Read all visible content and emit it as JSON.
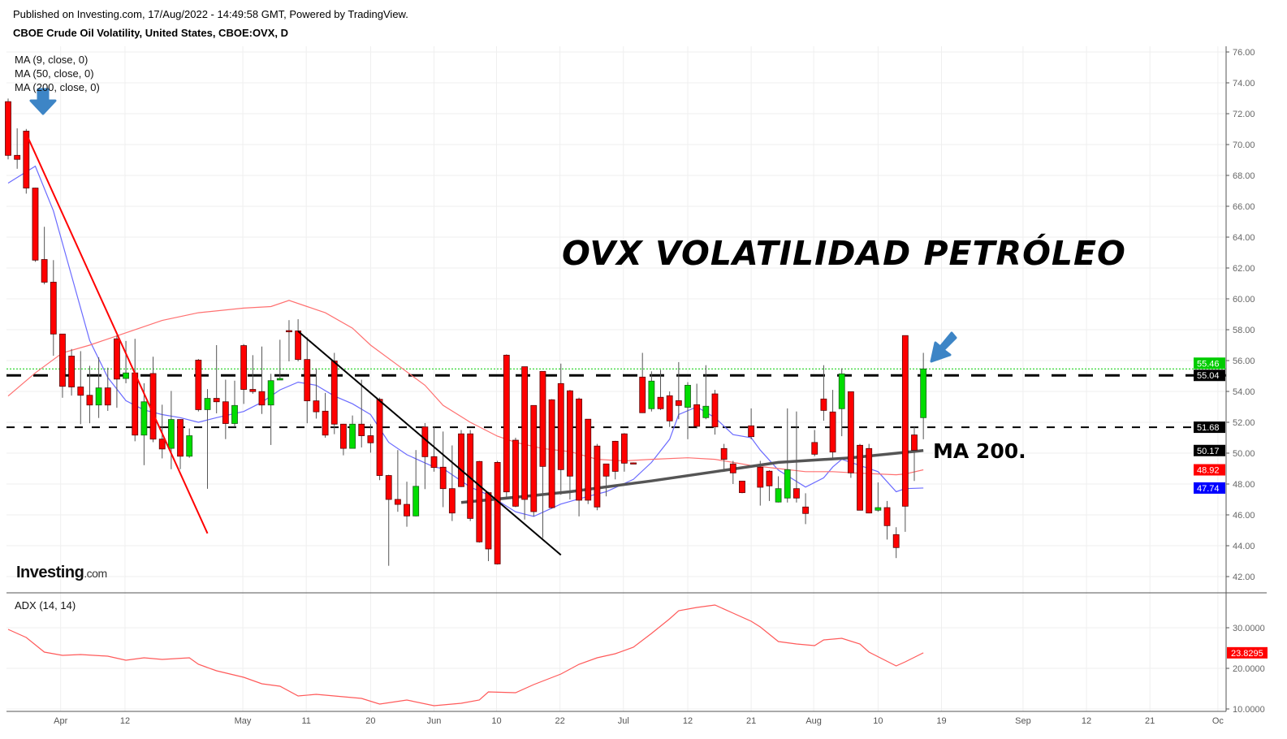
{
  "header": {
    "published": "Published on Investing.com, 17/Aug/2022 - 14:49:58 GMT, Powered by TradingView.",
    "title": "CBOE Crude Oil Volatility, United States, CBOE:OVX, D"
  },
  "legend": {
    "ma9": "MA (9, close, 0)",
    "ma50": "MA (50, close, 0)",
    "ma200": "MA (200, close, 0)",
    "adx": "ADX (14, 14)"
  },
  "annotations": {
    "headline": "OVX VOLATILIDAD PETRÓLEO",
    "ma200_note": "MA 200."
  },
  "logo": {
    "main": "Investing",
    "suffix": ".com"
  },
  "colors": {
    "up": "#00dd00",
    "down": "#ff0000",
    "ma9": "#6b6bff",
    "ma50": "#ff7070",
    "ma200": "#555555",
    "adx": "#ff5a5a",
    "arrow": "#3d85c6",
    "last_price": "#00cc00",
    "ma200_badge": "#000000",
    "ma50_badge": "#ff0000",
    "ma9_badge": "#0000ff"
  },
  "chart_data": {
    "type": "candlestick",
    "title": "CBOE Crude Oil Volatility, United States, CBOE:OVX, D",
    "ylim": [
      42,
      76
    ],
    "y_ticks": [
      "42.00",
      "44.00",
      "46.00",
      "48.00",
      "50.00",
      "52.00",
      "54.00",
      "56.00",
      "58.00",
      "60.00",
      "62.00",
      "64.00",
      "66.00",
      "68.00",
      "70.00",
      "72.00",
      "74.00",
      "76.00"
    ],
    "x_ticks": [
      {
        "label": "Apr",
        "at": 5.8
      },
      {
        "label": "12",
        "at": 12.9
      },
      {
        "label": "May",
        "at": 25.9
      },
      {
        "label": "11",
        "at": 32.9
      },
      {
        "label": "20",
        "at": 40
      },
      {
        "label": "Jun",
        "at": 47
      },
      {
        "label": "10",
        "at": 53.9
      },
      {
        "label": "22",
        "at": 60.9
      },
      {
        "label": "Jul",
        "at": 67.9
      },
      {
        "label": "12",
        "at": 75
      },
      {
        "label": "21",
        "at": 82
      },
      {
        "label": "Aug",
        "at": 88.9
      },
      {
        "label": "10",
        "at": 96
      },
      {
        "label": "19",
        "at": 103
      },
      {
        "label": "Sep",
        "at": 112
      },
      {
        "label": "12",
        "at": 119
      },
      {
        "label": "21",
        "at": 126
      },
      {
        "label": "Oc",
        "at": 133.5
      }
    ],
    "ohlc": [
      [
        72.78,
        72.98,
        69.04,
        69.3
      ],
      [
        69.3,
        71.05,
        68.43,
        69.04
      ],
      [
        70.87,
        71.01,
        66.82,
        67.18
      ],
      [
        67.18,
        67.2,
        62.4,
        62.51
      ],
      [
        62.55,
        64.67,
        60.94,
        61.08
      ],
      [
        61.08,
        62.51,
        56.31,
        57.72
      ],
      [
        57.72,
        57.72,
        53.59,
        54.33
      ],
      [
        56.29,
        56.75,
        53.73,
        54.29
      ],
      [
        54.29,
        56.61,
        51.88,
        53.75
      ],
      [
        53.75,
        55.66,
        51.94,
        53.12
      ],
      [
        53.12,
        56.21,
        52.28,
        54.23
      ],
      [
        54.23,
        55.54,
        52.74,
        53.12
      ],
      [
        57.41,
        57.62,
        52.94,
        54.8
      ],
      [
        54.84,
        57.27,
        54.53,
        55.2
      ],
      [
        55.2,
        57.41,
        50.77,
        51.17
      ],
      [
        51.17,
        54.53,
        49.22,
        53.33
      ],
      [
        55.16,
        56.25,
        50.71,
        50.91
      ],
      [
        50.91,
        53.14,
        49.66,
        50.27
      ],
      [
        50.31,
        54.03,
        48.96,
        52.18
      ],
      [
        52.18,
        52.2,
        48.96,
        49.8
      ],
      [
        49.8,
        51.6,
        49.7,
        51.13
      ],
      [
        56.03,
        56.1,
        52.7,
        52.82
      ],
      [
        52.82,
        54.15,
        47.69,
        53.55
      ],
      [
        53.55,
        57.0,
        52.58,
        53.33
      ],
      [
        53.33,
        54.76,
        50.91,
        51.92
      ],
      [
        51.92,
        54.7,
        51.7,
        53.09
      ],
      [
        56.97,
        57.07,
        53.19,
        54.13
      ],
      [
        54.13,
        56.35,
        53.85,
        53.99
      ],
      [
        53.99,
        56.91,
        52.54,
        53.12
      ],
      [
        53.12,
        55.14,
        50.53,
        54.7
      ],
      [
        54.74,
        57.35,
        54.74,
        54.84
      ],
      [
        57.94,
        58.62,
        55.95,
        57.9
      ],
      [
        57.92,
        58.68,
        55.95,
        56.07
      ],
      [
        56.07,
        57.5,
        51.94,
        53.39
      ],
      [
        53.39,
        55.5,
        52.24,
        52.68
      ],
      [
        52.72,
        53.9,
        51.0,
        51.17
      ],
      [
        55.97,
        56.5,
        51.23,
        51.88
      ],
      [
        51.88,
        51.9,
        49.86,
        50.31
      ],
      [
        50.31,
        52.44,
        50.3,
        51.88
      ],
      [
        51.88,
        54.76,
        50.37,
        51.13
      ],
      [
        51.13,
        51.88,
        50.03,
        50.67
      ],
      [
        53.49,
        53.6,
        48.25,
        48.55
      ],
      [
        48.55,
        48.6,
        42.7,
        47.0
      ],
      [
        47.0,
        50.2,
        46.2,
        46.68
      ],
      [
        46.68,
        48.15,
        45.23,
        45.93
      ],
      [
        45.93,
        50.2,
        45.9,
        47.85
      ],
      [
        51.7,
        51.95,
        47.67,
        49.77
      ],
      [
        49.77,
        51.7,
        48.8,
        49.07
      ],
      [
        49.09,
        51.4,
        46.5,
        47.7
      ],
      [
        47.7,
        50.5,
        45.6,
        46.12
      ],
      [
        51.25,
        51.5,
        47.8,
        47.83
      ],
      [
        51.25,
        51.5,
        45.6,
        45.77
      ],
      [
        49.46,
        49.5,
        44.2,
        44.25
      ],
      [
        47.44,
        47.5,
        43.0,
        43.79
      ],
      [
        49.4,
        49.5,
        42.78,
        42.82
      ],
      [
        56.35,
        56.4,
        47.0,
        47.49
      ],
      [
        50.84,
        51.0,
        46.5,
        46.56
      ],
      [
        55.6,
        55.6,
        45.7,
        47.0
      ],
      [
        53.09,
        53.1,
        45.9,
        46.21
      ],
      [
        55.3,
        55.3,
        44.5,
        49.14
      ],
      [
        53.46,
        53.5,
        46.4,
        46.47
      ],
      [
        54.51,
        55.8,
        47.3,
        48.93
      ],
      [
        54.04,
        54.1,
        47.0,
        48.51
      ],
      [
        53.51,
        53.6,
        45.9,
        46.95
      ],
      [
        52.2,
        52.2,
        46.7,
        46.95
      ],
      [
        50.46,
        50.6,
        46.3,
        46.51
      ],
      [
        49.3,
        49.3,
        47.2,
        48.51
      ],
      [
        50.77,
        50.8,
        48.3,
        48.82
      ],
      [
        51.25,
        51.3,
        48.8,
        49.35
      ],
      [
        49.37,
        49.4,
        49.33,
        49.35
      ],
      [
        54.93,
        56.5,
        52.6,
        52.62
      ],
      [
        52.88,
        55.3,
        52.7,
        54.67
      ],
      [
        53.62,
        55.4,
        52.8,
        52.88
      ],
      [
        53.72,
        54.0,
        51.7,
        52.09
      ],
      [
        53.4,
        55.9,
        52.2,
        53.09
      ],
      [
        52.97,
        54.6,
        50.9,
        54.4
      ],
      [
        53.14,
        54.5,
        51.6,
        51.74
      ],
      [
        52.3,
        55.7,
        52.2,
        53.04
      ],
      [
        53.84,
        54.1,
        51.2,
        51.7
      ],
      [
        50.3,
        50.6,
        48.8,
        49.6
      ],
      [
        49.3,
        49.5,
        48.0,
        48.72
      ],
      [
        48.19,
        48.2,
        47.4,
        47.44
      ],
      [
        51.77,
        52.9,
        50.9,
        51.07
      ],
      [
        49.09,
        49.5,
        46.6,
        47.79
      ],
      [
        48.83,
        48.9,
        46.9,
        47.88
      ],
      [
        46.83,
        48.5,
        46.8,
        47.7
      ],
      [
        47.09,
        52.9,
        46.8,
        48.93
      ],
      [
        47.7,
        52.7,
        46.8,
        47.09
      ],
      [
        46.51,
        47.4,
        45.4,
        46.09
      ],
      [
        50.69,
        51.5,
        49.8,
        49.93
      ],
      [
        53.51,
        55.7,
        52.1,
        52.77
      ],
      [
        52.67,
        54.1,
        49.7,
        50.07
      ],
      [
        52.88,
        55.5,
        51.1,
        55.14
      ],
      [
        53.98,
        54.0,
        48.4,
        48.72
      ],
      [
        50.51,
        50.6,
        46.3,
        46.3
      ],
      [
        50.3,
        50.6,
        46.1,
        46.12
      ],
      [
        46.3,
        48.1,
        46.2,
        46.47
      ],
      [
        46.47,
        46.9,
        44.4,
        45.3
      ],
      [
        44.72,
        45.2,
        43.2,
        43.88
      ],
      [
        57.62,
        57.62,
        44.9,
        46.56
      ],
      [
        51.18,
        51.7,
        48.2,
        50.19
      ],
      [
        52.3,
        56.5,
        50.9,
        55.46
      ]
    ],
    "series": [
      {
        "name": "MA (9, close, 0)",
        "last": "47.74",
        "points": [
          [
            0,
            67.5
          ],
          [
            3,
            68.6
          ],
          [
            5,
            65.7
          ],
          [
            7,
            61.5
          ],
          [
            9,
            57.3
          ],
          [
            11,
            54.9
          ],
          [
            13,
            53.4
          ],
          [
            15,
            52.8
          ],
          [
            17,
            52.5
          ],
          [
            19,
            52.3
          ],
          [
            21,
            52.0
          ],
          [
            23,
            52.3
          ],
          [
            26,
            52.7
          ],
          [
            28,
            53.3
          ],
          [
            30,
            54.1
          ],
          [
            32,
            54.6
          ],
          [
            34,
            54.4
          ],
          [
            36,
            53.7
          ],
          [
            38,
            53.2
          ],
          [
            40,
            52.5
          ],
          [
            42,
            50.7
          ],
          [
            44,
            49.9
          ],
          [
            47,
            49.1
          ],
          [
            48,
            49.0
          ],
          [
            51,
            47.8
          ],
          [
            53,
            47.3
          ],
          [
            56,
            46.2
          ],
          [
            58,
            45.9
          ],
          [
            61,
            46.7
          ],
          [
            64,
            47.2
          ],
          [
            66,
            47.5
          ],
          [
            69,
            48.3
          ],
          [
            71,
            49.4
          ],
          [
            73,
            50.9
          ],
          [
            74,
            52.5
          ],
          [
            76,
            53.0
          ],
          [
            78,
            52.3
          ],
          [
            80,
            51.2
          ],
          [
            82,
            51.0
          ],
          [
            83,
            50.2
          ],
          [
            85,
            48.9
          ],
          [
            88,
            47.8
          ],
          [
            90,
            48.4
          ],
          [
            91,
            49.1
          ],
          [
            92,
            49.6
          ],
          [
            94,
            49.2
          ],
          [
            96,
            48.8
          ],
          [
            98,
            47.5
          ],
          [
            99,
            47.7
          ],
          [
            101,
            47.74
          ]
        ]
      },
      {
        "name": "MA (50, close, 0)",
        "last": "48.92",
        "points": [
          [
            0,
            53.7
          ],
          [
            3,
            55.2
          ],
          [
            6,
            56.5
          ],
          [
            9,
            57.0
          ],
          [
            13,
            57.8
          ],
          [
            17,
            58.6
          ],
          [
            21,
            59.1
          ],
          [
            26,
            59.4
          ],
          [
            29,
            59.5
          ],
          [
            31,
            59.9
          ],
          [
            33,
            59.5
          ],
          [
            35,
            59.1
          ],
          [
            38,
            58.1
          ],
          [
            40,
            57.0
          ],
          [
            43,
            55.7
          ],
          [
            46,
            54.4
          ],
          [
            48,
            53.1
          ],
          [
            51,
            52.0
          ],
          [
            54,
            51.1
          ],
          [
            56,
            50.7
          ],
          [
            59,
            50.3
          ],
          [
            62,
            50.1
          ],
          [
            65,
            49.6
          ],
          [
            68,
            49.5
          ],
          [
            71,
            49.6
          ],
          [
            75,
            49.7
          ],
          [
            78,
            49.6
          ],
          [
            80,
            49.4
          ],
          [
            82,
            49.2
          ],
          [
            85,
            49.0
          ],
          [
            88,
            48.8
          ],
          [
            91,
            48.8
          ],
          [
            94,
            48.7
          ],
          [
            98,
            48.6
          ],
          [
            99,
            48.65
          ],
          [
            101,
            48.92
          ]
        ]
      },
      {
        "name": "MA (200, close, 0)",
        "last": "50.17",
        "points": [
          [
            50,
            46.8
          ],
          [
            57,
            47.2
          ],
          [
            62,
            47.5
          ],
          [
            71,
            48.2
          ],
          [
            78,
            48.8
          ],
          [
            85,
            49.4
          ],
          [
            93,
            49.7
          ],
          [
            101,
            50.17
          ]
        ]
      }
    ],
    "horizontal_lines": [
      {
        "value": 55.04,
        "label": "55.04",
        "style": "dashed-thick"
      },
      {
        "value": 51.68,
        "label": "51.68",
        "style": "dashed"
      },
      {
        "value": 55.46,
        "label": "55.46",
        "style": "dotted-last"
      }
    ],
    "trendlines": [
      {
        "color": "red",
        "from": [
          2,
          70.7
        ],
        "to": [
          22,
          44.8
        ]
      },
      {
        "color": "black",
        "from": [
          32,
          57.9
        ],
        "to": [
          61,
          43.4
        ]
      }
    ],
    "adx": {
      "title": "ADX (14, 14)",
      "ylim": [
        10,
        30
      ],
      "y_ticks": [
        "10.0000",
        "20.0000",
        "30.0000"
      ],
      "last": "23.8295",
      "points": [
        [
          0,
          29.6
        ],
        [
          2,
          27.6
        ],
        [
          4,
          24.0
        ],
        [
          6,
          23.2
        ],
        [
          8,
          23.4
        ],
        [
          11,
          23.0
        ],
        [
          13,
          22.0
        ],
        [
          15,
          22.6
        ],
        [
          17,
          22.2
        ],
        [
          20,
          22.6
        ],
        [
          21,
          21.0
        ],
        [
          23,
          19.4
        ],
        [
          26,
          17.8
        ],
        [
          28,
          16.2
        ],
        [
          30,
          15.6
        ],
        [
          32,
          13.2
        ],
        [
          34,
          13.6
        ],
        [
          36,
          13.2
        ],
        [
          39,
          12.6
        ],
        [
          41,
          11.2
        ],
        [
          44,
          12.2
        ],
        [
          47,
          10.8
        ],
        [
          50,
          11.4
        ],
        [
          52,
          12.2
        ],
        [
          53,
          14.2
        ],
        [
          56,
          14.0
        ],
        [
          58,
          16.0
        ],
        [
          61,
          18.6
        ],
        [
          63,
          21.0
        ],
        [
          65,
          22.6
        ],
        [
          67,
          23.6
        ],
        [
          69,
          25.2
        ],
        [
          71,
          28.6
        ],
        [
          73,
          32.2
        ],
        [
          74,
          34.2
        ],
        [
          76,
          35.0
        ],
        [
          78,
          35.6
        ],
        [
          80,
          33.6
        ],
        [
          82,
          31.6
        ],
        [
          83,
          30.2
        ],
        [
          85,
          26.6
        ],
        [
          87,
          26.0
        ],
        [
          89,
          25.6
        ],
        [
          90,
          27.0
        ],
        [
          92,
          27.4
        ],
        [
          94,
          26.0
        ],
        [
          95,
          24.0
        ],
        [
          98,
          20.6
        ],
        [
          99,
          21.6
        ],
        [
          101,
          23.83
        ]
      ]
    }
  }
}
